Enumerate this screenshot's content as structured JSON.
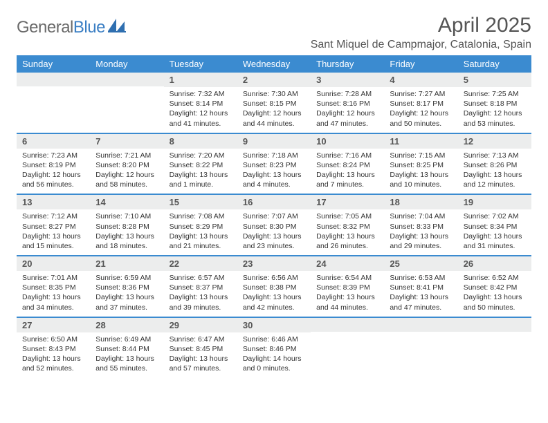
{
  "brand": {
    "part1": "General",
    "part2": "Blue"
  },
  "title": "April 2025",
  "location": "Sant Miquel de Campmajor, Catalonia, Spain",
  "colors": {
    "header_bg": "#3b8bd0",
    "daynum_bg": "#eceded",
    "rule": "#3b8bd0",
    "text": "#333333",
    "title": "#555555"
  },
  "fonts": {
    "title_size": 30,
    "location_size": 16,
    "weekday_size": 13,
    "daynum_size": 13,
    "body_size": 10.5
  },
  "weekdays": [
    "Sunday",
    "Monday",
    "Tuesday",
    "Wednesday",
    "Thursday",
    "Friday",
    "Saturday"
  ],
  "weeks": [
    [
      {
        "n": "",
        "lines": []
      },
      {
        "n": "",
        "lines": []
      },
      {
        "n": "1",
        "lines": [
          "Sunrise: 7:32 AM",
          "Sunset: 8:14 PM",
          "Daylight: 12 hours",
          "and 41 minutes."
        ]
      },
      {
        "n": "2",
        "lines": [
          "Sunrise: 7:30 AM",
          "Sunset: 8:15 PM",
          "Daylight: 12 hours",
          "and 44 minutes."
        ]
      },
      {
        "n": "3",
        "lines": [
          "Sunrise: 7:28 AM",
          "Sunset: 8:16 PM",
          "Daylight: 12 hours",
          "and 47 minutes."
        ]
      },
      {
        "n": "4",
        "lines": [
          "Sunrise: 7:27 AM",
          "Sunset: 8:17 PM",
          "Daylight: 12 hours",
          "and 50 minutes."
        ]
      },
      {
        "n": "5",
        "lines": [
          "Sunrise: 7:25 AM",
          "Sunset: 8:18 PM",
          "Daylight: 12 hours",
          "and 53 minutes."
        ]
      }
    ],
    [
      {
        "n": "6",
        "lines": [
          "Sunrise: 7:23 AM",
          "Sunset: 8:19 PM",
          "Daylight: 12 hours",
          "and 56 minutes."
        ]
      },
      {
        "n": "7",
        "lines": [
          "Sunrise: 7:21 AM",
          "Sunset: 8:20 PM",
          "Daylight: 12 hours",
          "and 58 minutes."
        ]
      },
      {
        "n": "8",
        "lines": [
          "Sunrise: 7:20 AM",
          "Sunset: 8:22 PM",
          "Daylight: 13 hours",
          "and 1 minute."
        ]
      },
      {
        "n": "9",
        "lines": [
          "Sunrise: 7:18 AM",
          "Sunset: 8:23 PM",
          "Daylight: 13 hours",
          "and 4 minutes."
        ]
      },
      {
        "n": "10",
        "lines": [
          "Sunrise: 7:16 AM",
          "Sunset: 8:24 PM",
          "Daylight: 13 hours",
          "and 7 minutes."
        ]
      },
      {
        "n": "11",
        "lines": [
          "Sunrise: 7:15 AM",
          "Sunset: 8:25 PM",
          "Daylight: 13 hours",
          "and 10 minutes."
        ]
      },
      {
        "n": "12",
        "lines": [
          "Sunrise: 7:13 AM",
          "Sunset: 8:26 PM",
          "Daylight: 13 hours",
          "and 12 minutes."
        ]
      }
    ],
    [
      {
        "n": "13",
        "lines": [
          "Sunrise: 7:12 AM",
          "Sunset: 8:27 PM",
          "Daylight: 13 hours",
          "and 15 minutes."
        ]
      },
      {
        "n": "14",
        "lines": [
          "Sunrise: 7:10 AM",
          "Sunset: 8:28 PM",
          "Daylight: 13 hours",
          "and 18 minutes."
        ]
      },
      {
        "n": "15",
        "lines": [
          "Sunrise: 7:08 AM",
          "Sunset: 8:29 PM",
          "Daylight: 13 hours",
          "and 21 minutes."
        ]
      },
      {
        "n": "16",
        "lines": [
          "Sunrise: 7:07 AM",
          "Sunset: 8:30 PM",
          "Daylight: 13 hours",
          "and 23 minutes."
        ]
      },
      {
        "n": "17",
        "lines": [
          "Sunrise: 7:05 AM",
          "Sunset: 8:32 PM",
          "Daylight: 13 hours",
          "and 26 minutes."
        ]
      },
      {
        "n": "18",
        "lines": [
          "Sunrise: 7:04 AM",
          "Sunset: 8:33 PM",
          "Daylight: 13 hours",
          "and 29 minutes."
        ]
      },
      {
        "n": "19",
        "lines": [
          "Sunrise: 7:02 AM",
          "Sunset: 8:34 PM",
          "Daylight: 13 hours",
          "and 31 minutes."
        ]
      }
    ],
    [
      {
        "n": "20",
        "lines": [
          "Sunrise: 7:01 AM",
          "Sunset: 8:35 PM",
          "Daylight: 13 hours",
          "and 34 minutes."
        ]
      },
      {
        "n": "21",
        "lines": [
          "Sunrise: 6:59 AM",
          "Sunset: 8:36 PM",
          "Daylight: 13 hours",
          "and 37 minutes."
        ]
      },
      {
        "n": "22",
        "lines": [
          "Sunrise: 6:57 AM",
          "Sunset: 8:37 PM",
          "Daylight: 13 hours",
          "and 39 minutes."
        ]
      },
      {
        "n": "23",
        "lines": [
          "Sunrise: 6:56 AM",
          "Sunset: 8:38 PM",
          "Daylight: 13 hours",
          "and 42 minutes."
        ]
      },
      {
        "n": "24",
        "lines": [
          "Sunrise: 6:54 AM",
          "Sunset: 8:39 PM",
          "Daylight: 13 hours",
          "and 44 minutes."
        ]
      },
      {
        "n": "25",
        "lines": [
          "Sunrise: 6:53 AM",
          "Sunset: 8:41 PM",
          "Daylight: 13 hours",
          "and 47 minutes."
        ]
      },
      {
        "n": "26",
        "lines": [
          "Sunrise: 6:52 AM",
          "Sunset: 8:42 PM",
          "Daylight: 13 hours",
          "and 50 minutes."
        ]
      }
    ],
    [
      {
        "n": "27",
        "lines": [
          "Sunrise: 6:50 AM",
          "Sunset: 8:43 PM",
          "Daylight: 13 hours",
          "and 52 minutes."
        ]
      },
      {
        "n": "28",
        "lines": [
          "Sunrise: 6:49 AM",
          "Sunset: 8:44 PM",
          "Daylight: 13 hours",
          "and 55 minutes."
        ]
      },
      {
        "n": "29",
        "lines": [
          "Sunrise: 6:47 AM",
          "Sunset: 8:45 PM",
          "Daylight: 13 hours",
          "and 57 minutes."
        ]
      },
      {
        "n": "30",
        "lines": [
          "Sunrise: 6:46 AM",
          "Sunset: 8:46 PM",
          "Daylight: 14 hours",
          "and 0 minutes."
        ]
      },
      {
        "n": "",
        "lines": []
      },
      {
        "n": "",
        "lines": []
      },
      {
        "n": "",
        "lines": []
      }
    ]
  ]
}
